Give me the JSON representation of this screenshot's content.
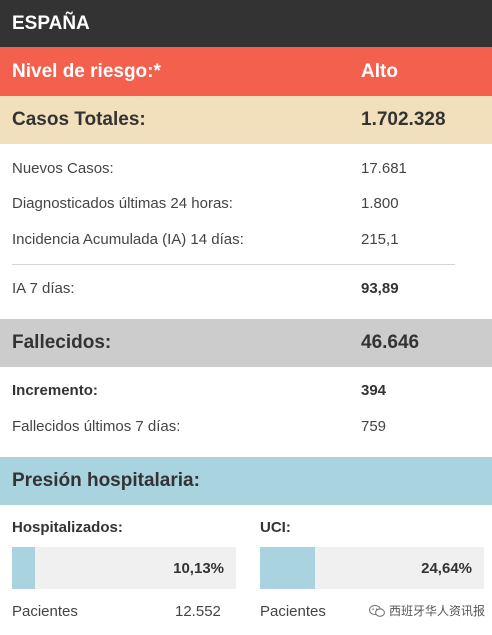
{
  "header": {
    "title": "ESPAÑA"
  },
  "risk": {
    "label": "Nivel de riesgo:*",
    "value": "Alto"
  },
  "casos": {
    "label": "Casos Totales:",
    "value": "1.702.328",
    "rows": [
      {
        "label": "Nuevos Casos:",
        "value": "17.681"
      },
      {
        "label": "Diagnosticados últimas 24 horas:",
        "value": "1.800"
      },
      {
        "label": "Incidencia Acumulada (IA) 14 días:",
        "value": "215,1"
      }
    ],
    "ia7": {
      "label": "IA 7 días:",
      "value": "93,89"
    }
  },
  "fallecidos": {
    "label": "Fallecidos:",
    "value": "46.646",
    "rows": [
      {
        "label": "Incremento:",
        "value": "394"
      },
      {
        "label": "Fallecidos últimos 7 días:",
        "value": "759"
      }
    ]
  },
  "presion": {
    "label": "Presión hospitalaria:",
    "hospitalizados": {
      "label": "Hospitalizados:",
      "percent_text": "10,13%",
      "percent": 10.13,
      "footer_label": "Pacientes",
      "footer_value": "12.552"
    },
    "uci": {
      "label": "UCI:",
      "percent_text": "24,64%",
      "percent": 24.64,
      "footer_label": "Pacientes"
    }
  },
  "watermark": {
    "text": "西班牙华人资讯报",
    "icon": "wechat-icon"
  },
  "colors": {
    "header": "#333333",
    "risk": "#f3604d",
    "casos": "#f2e0bc",
    "fallecidos": "#cccccc",
    "presion": "#a9d3df"
  }
}
